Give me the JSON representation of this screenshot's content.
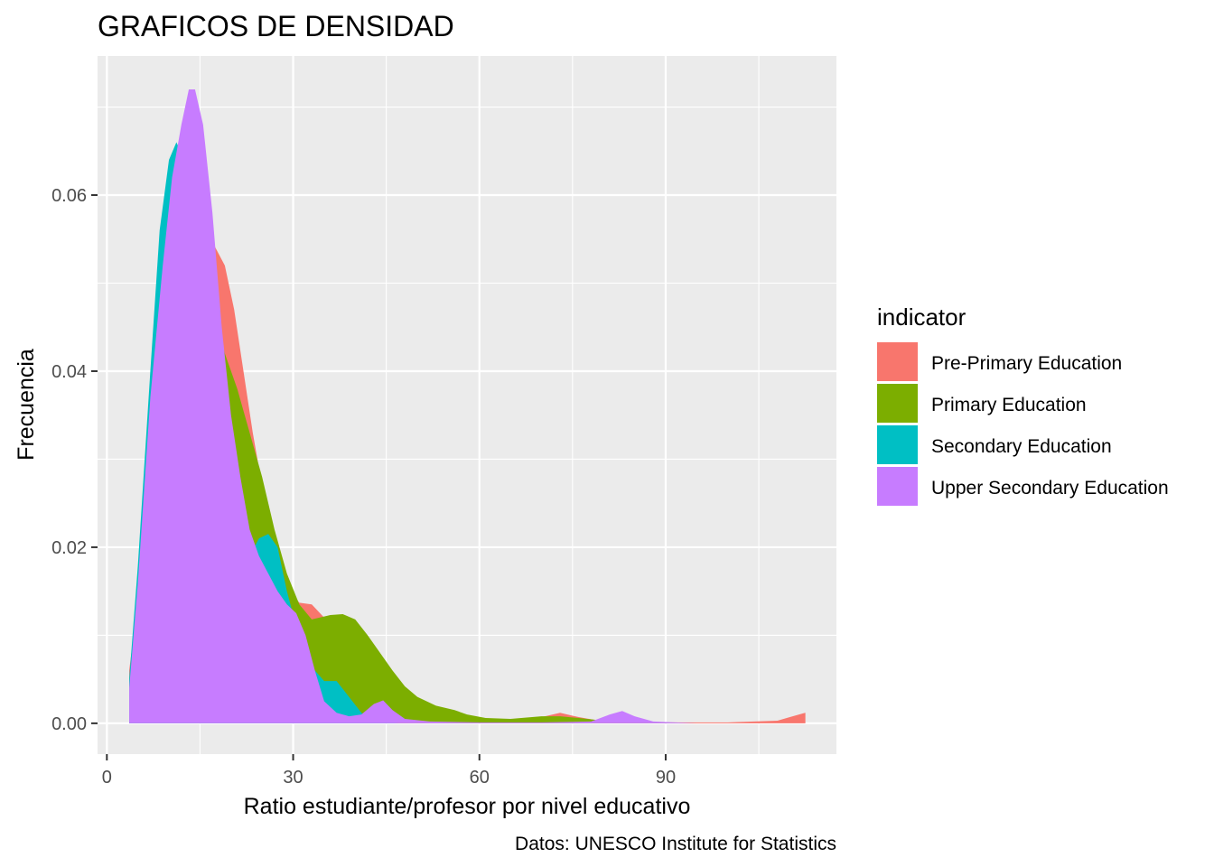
{
  "chart_data": {
    "type": "area",
    "title": "GRAFICOS DE DENSIDAD",
    "xlabel": "Ratio estudiante/profesor por nivel educativo",
    "ylabel": "Frecuencia",
    "caption": "Datos: UNESCO Institute for Statistics",
    "xlim": [
      -1.5,
      117.5
    ],
    "ylim": [
      -0.0035,
      0.0758
    ],
    "x_ticks": [
      0,
      30,
      60,
      90
    ],
    "x_tick_labels": [
      "0",
      "30",
      "60",
      "90"
    ],
    "y_ticks": [
      0.0,
      0.02,
      0.04,
      0.06
    ],
    "y_tick_labels": [
      "0.00",
      "0.02",
      "0.04",
      "0.06"
    ],
    "grid": true,
    "legend": {
      "title": "indicator",
      "position": "right"
    },
    "series": [
      {
        "name": "Pre-Primary Education",
        "color": "#F8766D",
        "points": [
          [
            3.6,
            0.006
          ],
          [
            5,
            0.014
          ],
          [
            7,
            0.032
          ],
          [
            9,
            0.048
          ],
          [
            11,
            0.057
          ],
          [
            13,
            0.06
          ],
          [
            14.5,
            0.06
          ],
          [
            16,
            0.056
          ],
          [
            17.5,
            0.054
          ],
          [
            19,
            0.052
          ],
          [
            20.5,
            0.047
          ],
          [
            22,
            0.04
          ],
          [
            23.5,
            0.033
          ],
          [
            25,
            0.027
          ],
          [
            26.5,
            0.022
          ],
          [
            28,
            0.018
          ],
          [
            29.5,
            0.015
          ],
          [
            31,
            0.0137
          ],
          [
            33,
            0.0135
          ],
          [
            35,
            0.012
          ],
          [
            37,
            0.0092
          ],
          [
            40,
            0.006
          ],
          [
            43,
            0.0035
          ],
          [
            46,
            0.0018
          ],
          [
            50,
            0.0008
          ],
          [
            55,
            0.0003
          ],
          [
            60,
            0.0002
          ],
          [
            65,
            0.0003
          ],
          [
            70,
            0.0007
          ],
          [
            73,
            0.0012
          ],
          [
            76,
            0.0007
          ],
          [
            80,
            0.0002
          ],
          [
            85,
            0.0001
          ],
          [
            90,
            0.0001
          ],
          [
            100,
            0.0001
          ],
          [
            108,
            0.0003
          ],
          [
            110,
            0.0007
          ],
          [
            112.5,
            0.0012
          ]
        ]
      },
      {
        "name": "Primary Education",
        "color": "#7CAE00",
        "points": [
          [
            3.6,
            0.003
          ],
          [
            5,
            0.012
          ],
          [
            7,
            0.033
          ],
          [
            9,
            0.05
          ],
          [
            11,
            0.058
          ],
          [
            13,
            0.061
          ],
          [
            15,
            0.057
          ],
          [
            17,
            0.048
          ],
          [
            19,
            0.042
          ],
          [
            21,
            0.038
          ],
          [
            23,
            0.033
          ],
          [
            25,
            0.028
          ],
          [
            27,
            0.022
          ],
          [
            29,
            0.017
          ],
          [
            31,
            0.0135
          ],
          [
            33,
            0.0118
          ],
          [
            36,
            0.0123
          ],
          [
            38,
            0.0124
          ],
          [
            40,
            0.0118
          ],
          [
            42,
            0.01
          ],
          [
            44,
            0.008
          ],
          [
            46,
            0.006
          ],
          [
            48,
            0.0042
          ],
          [
            50,
            0.003
          ],
          [
            53,
            0.002
          ],
          [
            56,
            0.0015
          ],
          [
            58,
            0.001
          ],
          [
            61,
            0.0006
          ],
          [
            65,
            0.0005
          ],
          [
            70,
            0.0008
          ],
          [
            73,
            0.0008
          ],
          [
            76,
            0.0006
          ],
          [
            80,
            0.0003
          ],
          [
            85,
            0.0001
          ],
          [
            95,
            0.0
          ],
          [
            112.5,
            0.0
          ]
        ]
      },
      {
        "name": "Secondary Education",
        "color": "#00BFC4",
        "points": [
          [
            3.6,
            0.005
          ],
          [
            5,
            0.018
          ],
          [
            7,
            0.04
          ],
          [
            8.5,
            0.056
          ],
          [
            10,
            0.064
          ],
          [
            11.2,
            0.066
          ],
          [
            12.5,
            0.064
          ],
          [
            14,
            0.057
          ],
          [
            15.5,
            0.048
          ],
          [
            17,
            0.04
          ],
          [
            18.5,
            0.033
          ],
          [
            20,
            0.025
          ],
          [
            21.5,
            0.02
          ],
          [
            23,
            0.019
          ],
          [
            24.5,
            0.021
          ],
          [
            26,
            0.0215
          ],
          [
            27.5,
            0.02
          ],
          [
            29,
            0.015
          ],
          [
            30.5,
            0.011
          ],
          [
            32,
            0.008
          ],
          [
            33.5,
            0.006
          ],
          [
            35,
            0.0048
          ],
          [
            37,
            0.0048
          ],
          [
            39,
            0.003
          ],
          [
            41,
            0.0012
          ],
          [
            43,
            0.0004
          ],
          [
            45,
            0.0001
          ],
          [
            47,
            0.0
          ],
          [
            60,
            0.0
          ],
          [
            80,
            0.0
          ],
          [
            112.5,
            0.0
          ]
        ]
      },
      {
        "name": "Upper Secondary Education",
        "color": "#C77CFF",
        "points": [
          [
            3.6,
            0.004
          ],
          [
            5,
            0.016
          ],
          [
            7,
            0.037
          ],
          [
            9,
            0.052
          ],
          [
            10.5,
            0.062
          ],
          [
            12,
            0.068
          ],
          [
            13.2,
            0.072
          ],
          [
            14.2,
            0.072
          ],
          [
            15.5,
            0.068
          ],
          [
            17,
            0.058
          ],
          [
            18.5,
            0.045
          ],
          [
            20,
            0.035
          ],
          [
            21.5,
            0.028
          ],
          [
            23,
            0.022
          ],
          [
            24.5,
            0.019
          ],
          [
            26,
            0.017
          ],
          [
            27.5,
            0.015
          ],
          [
            29,
            0.0135
          ],
          [
            30.5,
            0.0125
          ],
          [
            32,
            0.01
          ],
          [
            33.5,
            0.006
          ],
          [
            35,
            0.0025
          ],
          [
            37,
            0.0012
          ],
          [
            39,
            0.0008
          ],
          [
            41,
            0.001
          ],
          [
            43,
            0.0022
          ],
          [
            44.5,
            0.0026
          ],
          [
            46,
            0.0015
          ],
          [
            48,
            0.0005
          ],
          [
            52,
            0.0002
          ],
          [
            60,
            0.0001
          ],
          [
            70,
            0.0001
          ],
          [
            78,
            0.0002
          ],
          [
            81,
            0.001
          ],
          [
            83,
            0.0014
          ],
          [
            85,
            0.0008
          ],
          [
            88,
            0.0002
          ],
          [
            95,
            0.0
          ],
          [
            112.5,
            0.0
          ]
        ]
      }
    ]
  }
}
